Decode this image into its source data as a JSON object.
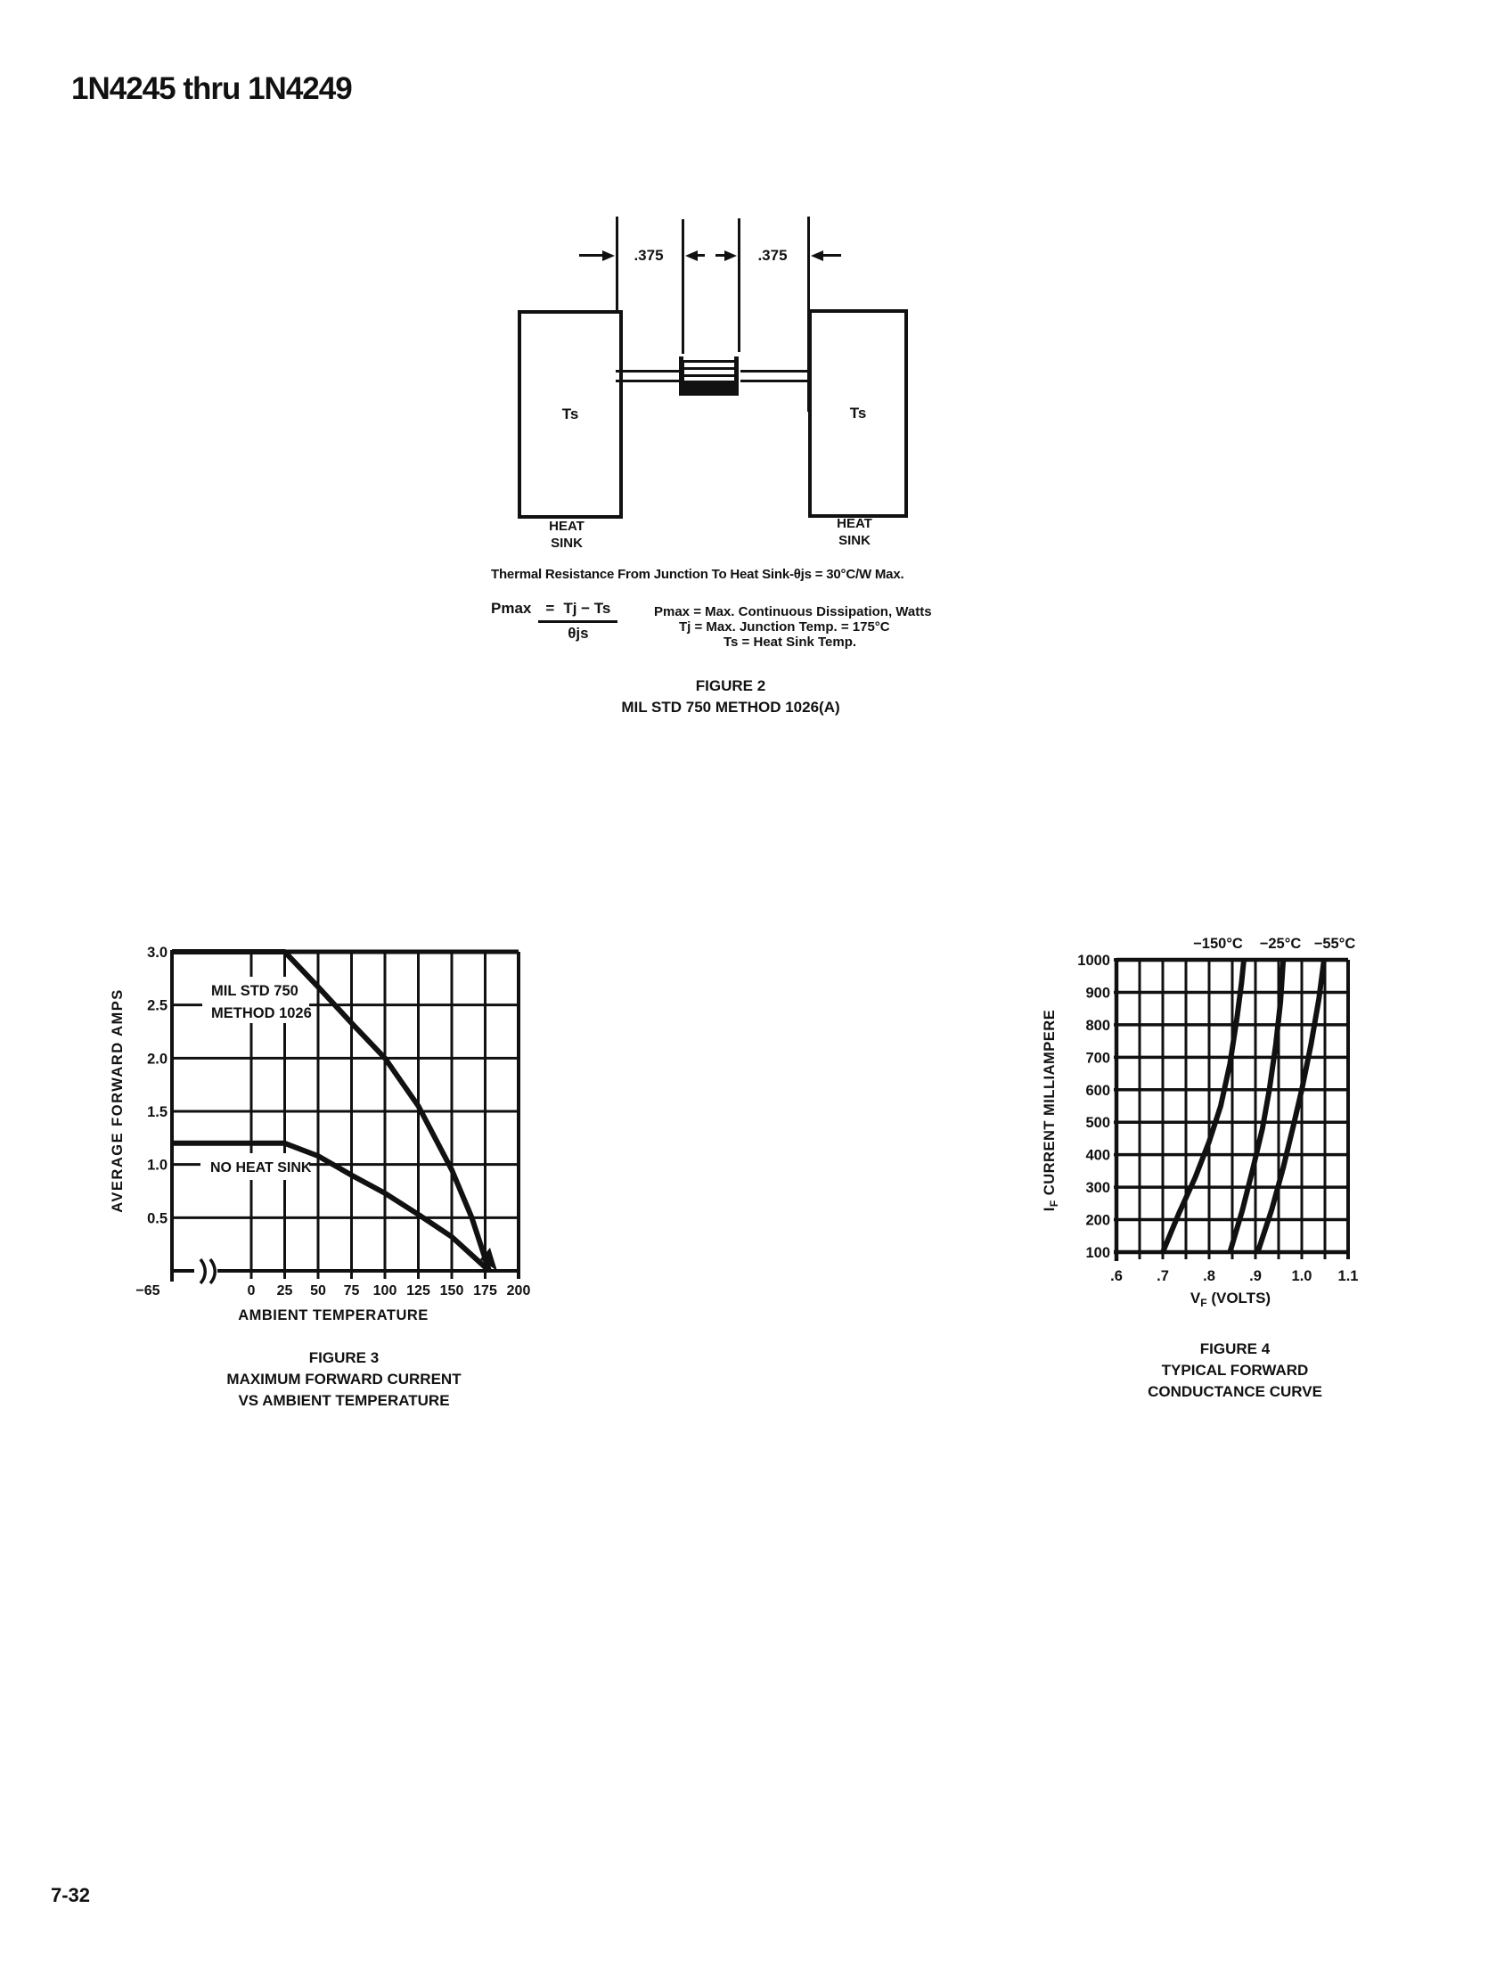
{
  "page": {
    "title": "1N4245 thru 1N4249",
    "page_number": "7-32"
  },
  "figure2": {
    "dim_label_left": ".375",
    "dim_label_right": ".375",
    "ts_left": "Ts",
    "ts_right": "Ts",
    "heat_line1": "HEAT",
    "heat_line2": "SINK",
    "thermal_note": "Thermal Resistance From Junction To Heat Sink-θjs = 30°C/W Max.",
    "formula": {
      "lhs": "Pmax",
      "eq": "=",
      "numerator": "Tj − Ts",
      "denominator": "θjs"
    },
    "definitions": {
      "line1": "Pmax = Max. Continuous Dissipation, Watts",
      "line2": "Tj = Max. Junction Temp. = 175°C",
      "line3": "Ts = Heat Sink Temp."
    },
    "caption_line1": "FIGURE 2",
    "caption_line2": "MIL STD 750 METHOD 1026(A)"
  },
  "figure3_caption": {
    "line1": "FIGURE 3",
    "line2": "MAXIMUM FORWARD CURRENT",
    "line3": "VS AMBIENT TEMPERATURE"
  },
  "figure4_caption": {
    "line1": "FIGURE 4",
    "line2": "TYPICAL FORWARD",
    "line3": "CONDUCTANCE CURVE"
  },
  "chart_data": [
    {
      "id": "fig3",
      "type": "line",
      "title": "MAXIMUM FORWARD CURRENT VS AMBIENT TEMPERATURE",
      "xlabel": "AMBIENT TEMPERATURE",
      "ylabel": "AVERAGE FORWARD AMPS",
      "xlim": [
        -65,
        200
      ],
      "ylim": [
        0,
        3.0
      ],
      "x_axis_break": true,
      "grid": true,
      "legend_position": "inside-left",
      "xticks": [
        -65,
        0,
        25,
        50,
        75,
        100,
        125,
        150,
        175,
        200
      ],
      "xtick_labels": [
        "−65",
        "0",
        "25",
        "50",
        "75",
        "100",
        "125",
        "150",
        "175",
        "200"
      ],
      "yticks": [
        0.5,
        1.0,
        1.5,
        2.0,
        2.5,
        3.0
      ],
      "ytick_labels": [
        "0.5",
        "1.0",
        "1.5",
        "2.0",
        "2.5",
        "3.0"
      ],
      "series": [
        {
          "name": "MIL STD 750 METHOD 1026",
          "label_lines": [
            "MIL STD 750",
            "METHOD 1026"
          ],
          "points": [
            [
              -65,
              3.0
            ],
            [
              25,
              3.0
            ],
            [
              50,
              2.67
            ],
            [
              75,
              2.33
            ],
            [
              100,
              2.0
            ],
            [
              125,
              1.55
            ],
            [
              150,
              0.95
            ],
            [
              165,
              0.5
            ],
            [
              178,
              0
            ]
          ]
        },
        {
          "name": "NO HEAT SINK",
          "label_lines": [
            "NO HEAT SINK"
          ],
          "points": [
            [
              -65,
              1.2
            ],
            [
              25,
              1.2
            ],
            [
              50,
              1.08
            ],
            [
              75,
              0.9
            ],
            [
              100,
              0.73
            ],
            [
              125,
              0.53
            ],
            [
              150,
              0.32
            ],
            [
              178,
              0
            ]
          ]
        }
      ]
    },
    {
      "id": "fig4",
      "type": "line",
      "title": "TYPICAL FORWARD CONDUCTANCE CURVE",
      "xlabel": "VF (VOLTS)",
      "ylabel": "IF CURRENT MILLIAMPERE",
      "xlabel_parts": {
        "pre": "V",
        "sub": "F",
        "post": " (VOLTS)"
      },
      "ylabel_parts": {
        "pre": "I",
        "sub": "F",
        "post": " CURRENT MILLIAMPERE"
      },
      "xlim": [
        0.6,
        1.1
      ],
      "ylim": [
        100,
        1000
      ],
      "grid": true,
      "minor_x_step": 0.05,
      "xticks": [
        0.6,
        0.7,
        0.8,
        0.9,
        1.0,
        1.1
      ],
      "xtick_labels": [
        ".6",
        ".7",
        ".8",
        ".9",
        "1.0",
        "1.1"
      ],
      "yticks": [
        100,
        200,
        300,
        400,
        500,
        600,
        700,
        800,
        900,
        1000
      ],
      "ytick_labels": [
        "100",
        "200",
        "300",
        "400",
        "500",
        "600",
        "700",
        "800",
        "900",
        "1000"
      ],
      "series": [
        {
          "name": "−150°C",
          "points": [
            [
              0.7,
              100
            ],
            [
              0.735,
              220
            ],
            [
              0.77,
              330
            ],
            [
              0.8,
              440
            ],
            [
              0.825,
              550
            ],
            [
              0.845,
              680
            ],
            [
              0.86,
              820
            ],
            [
              0.87,
              930
            ],
            [
              0.875,
              1000
            ]
          ]
        },
        {
          "name": "−25°C",
          "points": [
            [
              0.845,
              100
            ],
            [
              0.872,
              230
            ],
            [
              0.895,
              360
            ],
            [
              0.915,
              480
            ],
            [
              0.93,
              600
            ],
            [
              0.944,
              740
            ],
            [
              0.954,
              870
            ],
            [
              0.96,
              1000
            ]
          ]
        },
        {
          "name": "−55°C",
          "points": [
            [
              0.905,
              100
            ],
            [
              0.935,
              230
            ],
            [
              0.96,
              360
            ],
            [
              0.982,
              490
            ],
            [
              1.0,
              600
            ],
            [
              1.02,
              740
            ],
            [
              1.037,
              880
            ],
            [
              1.048,
              1000
            ]
          ]
        }
      ]
    }
  ]
}
